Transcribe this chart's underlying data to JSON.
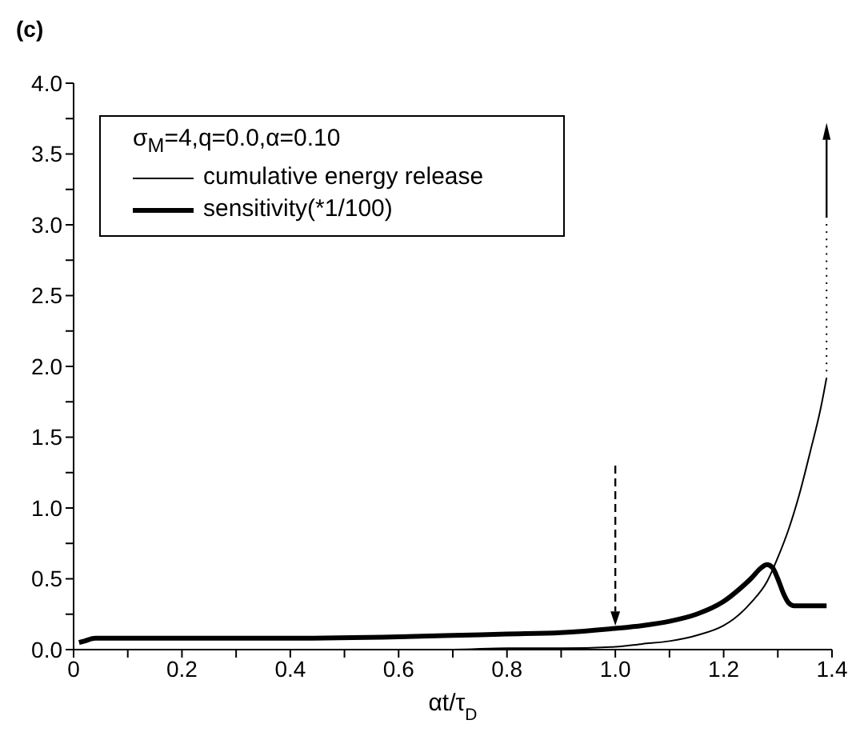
{
  "chart_data": {
    "type": "line",
    "title": "(c)",
    "xlabel": "αt/τ$_{D}$",
    "legend_title": "σ$_{M}$=4,q=0.0,α=0.10",
    "legend": "top left",
    "grid": false,
    "marker": "none",
    "line_style": "solid",
    "xlim": [
      0,
      1.4
    ],
    "ylim": [
      0,
      4
    ],
    "xticks": [
      0,
      {
        "value": 0.1,
        "label": null
      },
      0.2,
      {
        "value": 0.3,
        "label": null
      },
      0.4,
      {
        "value": 0.5,
        "label": null
      },
      0.6,
      {
        "value": 0.7,
        "label": null
      },
      0.8,
      {
        "value": 0.9,
        "label": null
      },
      {
        "value": 1,
        "label": "1.0"
      },
      {
        "value": 1.1,
        "label": null
      },
      1.2,
      {
        "value": 1.3,
        "label": null
      },
      1.4
    ],
    "yticks": [
      {
        "value": 0,
        "label": "0.0"
      },
      {
        "value": 0.25,
        "label": null
      },
      0.5,
      {
        "value": 0.75,
        "label": null
      },
      {
        "value": 1,
        "label": "1.0"
      },
      {
        "value": 1.25,
        "label": null
      },
      1.5,
      {
        "value": 1.75,
        "label": null
      },
      {
        "value": 2,
        "label": "2.0"
      },
      {
        "value": 2.25,
        "label": null
      },
      2.5,
      {
        "value": 2.75,
        "label": null
      },
      {
        "value": 3,
        "label": "3.0"
      },
      {
        "value": 3.25,
        "label": null
      },
      3.5,
      {
        "value": 3.75,
        "label": null
      },
      {
        "value": 4,
        "label": "4.0"
      }
    ],
    "series": [
      {
        "name": "cumulative energy release",
        "color": "#000000",
        "x": [
          0.01,
          0.2,
          0.4,
          0.6,
          0.7,
          0.8,
          0.9,
          1.0,
          1.05,
          1.1,
          1.15,
          1.2,
          1.22,
          1.25,
          1.28,
          1.3,
          1.32,
          1.34,
          1.36,
          1.38,
          1.39
        ],
        "values": [
          0,
          0,
          0,
          0,
          0,
          0.01,
          0.01,
          0.02,
          0.04,
          0.06,
          0.1,
          0.17,
          0.22,
          0.33,
          0.48,
          0.65,
          0.85,
          1.1,
          1.4,
          1.72,
          1.92
        ]
      },
      {
        "name": "sensitivity(*1/100)",
        "color": "#000000",
        "x": [
          0.01,
          0.02,
          0.04,
          0.07,
          0.2,
          0.4,
          0.6,
          0.7,
          0.8,
          0.9,
          1.0,
          1.05,
          1.1,
          1.15,
          1.2,
          1.23,
          1.25,
          1.27,
          1.28,
          1.29,
          1.3,
          1.31,
          1.32,
          1.33,
          1.34,
          1.36,
          1.39
        ],
        "values": [
          0.05,
          0.06,
          0.08,
          0.08,
          0.08,
          0.08,
          0.09,
          0.1,
          0.11,
          0.12,
          0.15,
          0.17,
          0.2,
          0.25,
          0.34,
          0.43,
          0.5,
          0.58,
          0.6,
          0.58,
          0.5,
          0.4,
          0.33,
          0.31,
          0.31,
          0.31,
          0.31
        ]
      }
    ]
  }
}
